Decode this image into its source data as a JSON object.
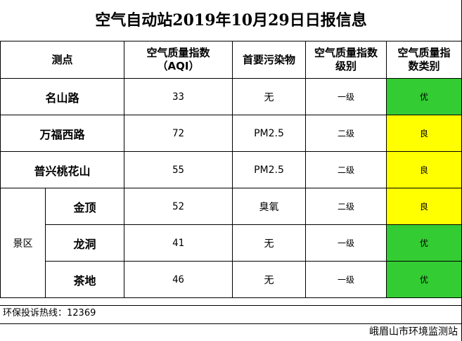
{
  "title": "空气自动站2019年10月29日日报信息",
  "headers": {
    "site": "测点",
    "aqi_line1": "空气质量指数",
    "aqi_line2": "（AQI）",
    "pollutant": "首要污染物",
    "level_line1": "空气质量指数",
    "level_line2": "级别",
    "category_line1": "空气质量指",
    "category_line2": "数类别"
  },
  "group_label": "景区",
  "rows": [
    {
      "site": "名山路",
      "aqi": "33",
      "pollutant": "无",
      "level": "一级",
      "category": "优",
      "color": "#33cc33"
    },
    {
      "site": "万福西路",
      "aqi": "72",
      "pollutant": "PM2.5",
      "level": "二级",
      "category": "良",
      "color": "#ffff00"
    },
    {
      "site": "普兴桃花山",
      "aqi": "55",
      "pollutant": "PM2.5",
      "level": "二级",
      "category": "良",
      "color": "#ffff00"
    },
    {
      "site": "金顶",
      "aqi": "52",
      "pollutant": "臭氧",
      "level": "二级",
      "category": "良",
      "color": "#ffff00"
    },
    {
      "site": "龙洞",
      "aqi": "41",
      "pollutant": "无",
      "level": "一级",
      "category": "优",
      "color": "#33cc33"
    },
    {
      "site": "茶地",
      "aqi": "46",
      "pollutant": "无",
      "level": "一级",
      "category": "优",
      "color": "#33cc33"
    }
  ],
  "footer": {
    "hotline": "环保投诉热线：12369",
    "station": "峨眉山市环境监测站"
  }
}
